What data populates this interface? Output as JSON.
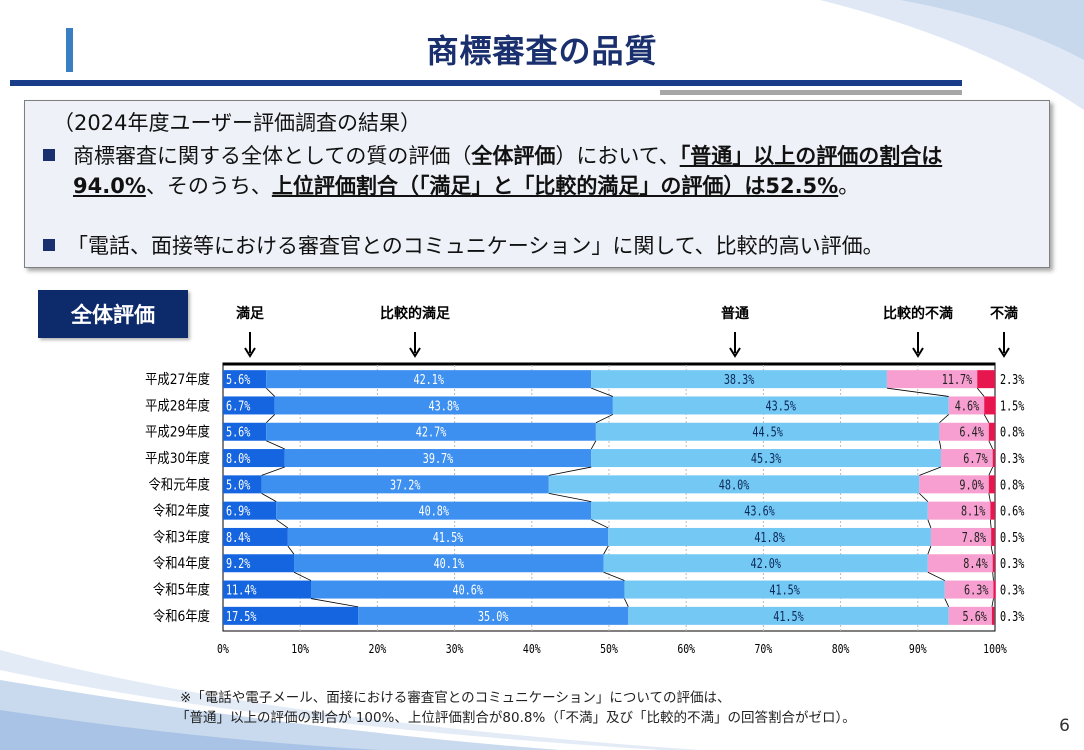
{
  "title": "商標審査の品質",
  "summary": {
    "heading": "（2024年度ユーザー評価調査の結果）",
    "bullet1": {
      "t1": "商標審査に関する全体としての質の評価（",
      "t2": "全体評価",
      "t3": "）において、",
      "t4": "「普通」以上の評価の割合は94.0%",
      "t5": "、そのうち、",
      "t6": "上位評価割合（「満足」と「比較的満足」の評価）は52.5%",
      "t7": "。"
    },
    "bullet2": "「電話、面接等における審査官とのコミュニケーション」に関して、比較的高い評価。"
  },
  "badge": "全体評価",
  "colors": {
    "satisfied": "#1565e0",
    "relatively_satisfied": "#3d8ff0",
    "neutral": "#74c8f4",
    "relatively_dissatisfied": "#f79fd0",
    "dissatisfied": "#e8164f",
    "title": "#1a2f6e"
  },
  "chart_data": {
    "type": "bar",
    "orientation": "horizontal-stacked-100",
    "categories": [
      "平成27年度",
      "平成28年度",
      "平成29年度",
      "平成30年度",
      "令和元年度",
      "令和2年度",
      "令和3年度",
      "令和4年度",
      "令和5年度",
      "令和6年度"
    ],
    "series": [
      {
        "name": "満足",
        "values": [
          5.6,
          6.7,
          5.6,
          8.0,
          5.0,
          6.9,
          8.4,
          9.2,
          11.4,
          17.5
        ]
      },
      {
        "name": "比較的満足",
        "values": [
          42.1,
          43.8,
          42.7,
          39.7,
          37.2,
          40.8,
          41.5,
          40.1,
          40.6,
          35.0
        ]
      },
      {
        "name": "普通",
        "values": [
          38.3,
          43.5,
          44.5,
          45.3,
          48.0,
          43.6,
          41.8,
          42.0,
          41.5,
          41.5
        ]
      },
      {
        "name": "比較的不満",
        "values": [
          11.7,
          4.6,
          6.4,
          6.7,
          9.0,
          8.1,
          7.8,
          8.4,
          6.3,
          5.6
        ]
      },
      {
        "name": "不満",
        "values": [
          2.3,
          1.5,
          0.8,
          0.3,
          0.8,
          0.6,
          0.5,
          0.3,
          0.3,
          0.3
        ]
      }
    ],
    "value_unit": "%",
    "xticks": [
      "0%",
      "10%",
      "20%",
      "30%",
      "40%",
      "50%",
      "60%",
      "70%",
      "80%",
      "90%",
      "100%"
    ],
    "xlim": [
      0,
      100
    ],
    "legend_arrows": [
      "満足",
      "比較的満足",
      "普通",
      "比較的不満",
      "不満"
    ],
    "grid": true
  },
  "footnote": {
    "line1": "※「電話や電子メール、面接における審査官とのコミュニケーション」についての評価は、",
    "line2": "「普通」以上の評価の割合が 100%、上位評価割合が80.8%（「不満」及び「比較的不満」の回答割合がゼロ）。"
  },
  "page_number": "6"
}
